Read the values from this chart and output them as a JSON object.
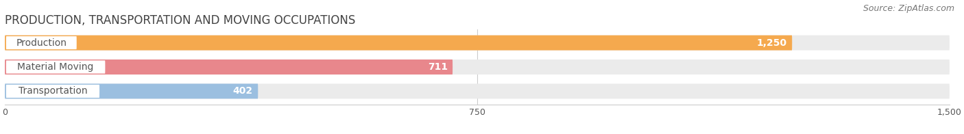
{
  "title": "PRODUCTION, TRANSPORTATION AND MOVING OCCUPATIONS",
  "source": "Source: ZipAtlas.com",
  "categories": [
    "Production",
    "Material Moving",
    "Transportation"
  ],
  "values": [
    1250,
    711,
    402
  ],
  "bar_colors": [
    "#F5A94E",
    "#E8878C",
    "#9BBFE0"
  ],
  "bar_bg_color": "#EBEBEB",
  "xlim": [
    0,
    1500
  ],
  "xticks": [
    0,
    750,
    1500
  ],
  "xtick_labels": [
    "0",
    "750",
    "1,500"
  ],
  "value_labels": [
    "1,250",
    "711",
    "402"
  ],
  "title_fontsize": 12,
  "source_fontsize": 9,
  "label_fontsize": 10,
  "value_fontsize": 10,
  "tick_fontsize": 9,
  "bar_height": 0.62,
  "fig_bg": "#FFFFFF",
  "label_text_color": "#555555",
  "title_color": "#444444",
  "grid_color": "#CCCCCC"
}
